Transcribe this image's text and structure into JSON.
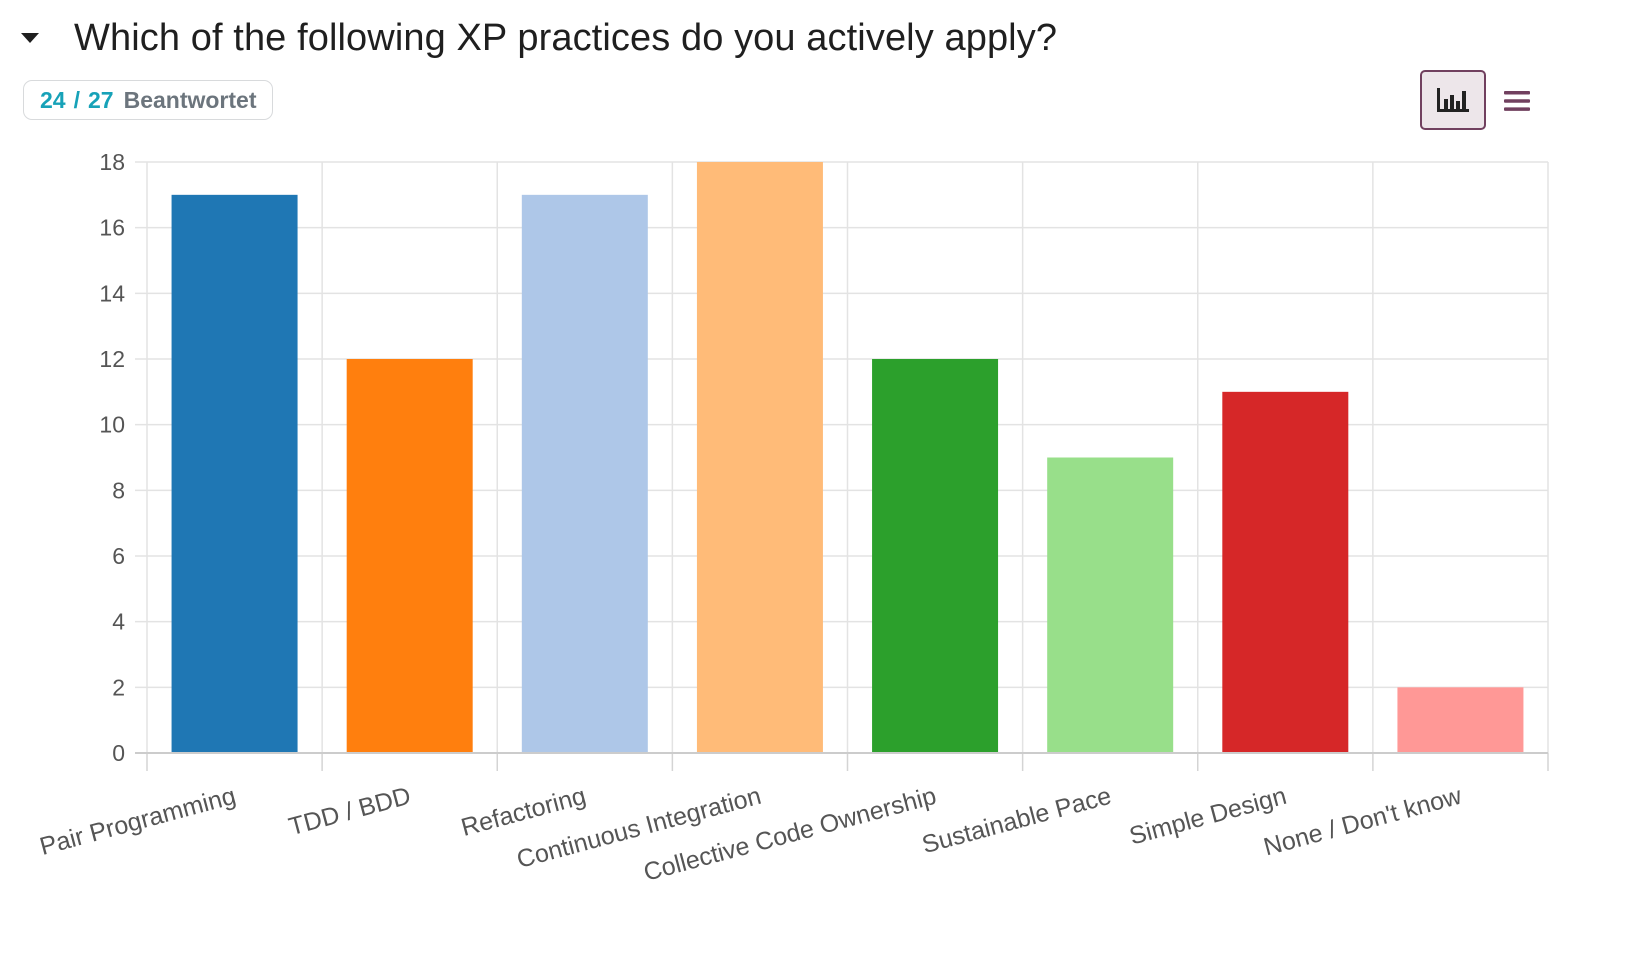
{
  "question": {
    "title": "Which of the following XP practices do you actively apply?",
    "toggle_icon": "caret-down-icon"
  },
  "badge": {
    "answered": "24",
    "separator": "/",
    "total": "27",
    "label": "Beantwortet"
  },
  "view_toggle": {
    "bar_chart_icon": "bar-chart-icon",
    "list_icon": "hamburger-list-icon",
    "accent_color": "#71405f"
  },
  "chart_data": {
    "type": "bar",
    "categories": [
      "Pair Programming",
      "TDD / BDD",
      "Refactoring",
      "Continuous Integration",
      "Collective Code Ownership",
      "Sustainable Pace",
      "Simple Design",
      "None / Don't know"
    ],
    "values": [
      17,
      12,
      17,
      18,
      12,
      9,
      11,
      2
    ],
    "colors": [
      "#1f77b4",
      "#ff7f0e",
      "#aec7e8",
      "#ffbb78",
      "#2ca02c",
      "#98df8a",
      "#d62728",
      "#ff9896"
    ],
    "ylim": [
      0,
      18
    ],
    "yticks": [
      0,
      2,
      4,
      6,
      8,
      10,
      12,
      14,
      16,
      18
    ],
    "grid": true,
    "legend": "none"
  }
}
